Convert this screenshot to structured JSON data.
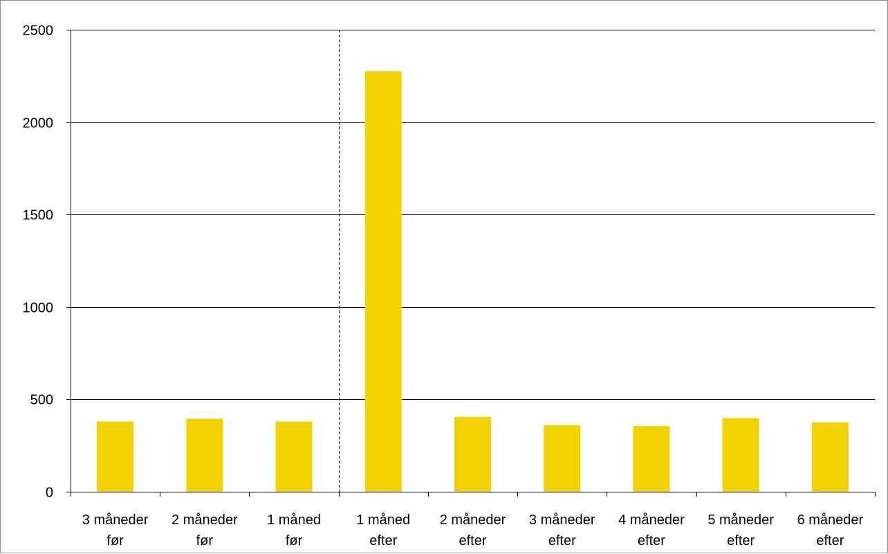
{
  "chart_data": {
    "type": "bar",
    "categories": [
      [
        "3 måneder",
        "før"
      ],
      [
        "2 måneder",
        "før"
      ],
      [
        "1 måned",
        "før"
      ],
      [
        "1 måned",
        "efter"
      ],
      [
        "2 måneder",
        "efter"
      ],
      [
        "3 måneder",
        "efter"
      ],
      [
        "4 måneder",
        "efter"
      ],
      [
        "5 måneder",
        "efter"
      ],
      [
        "6 måneder",
        "efter"
      ]
    ],
    "values": [
      380,
      395,
      380,
      2275,
      405,
      360,
      355,
      398,
      375
    ],
    "ylim": [
      0,
      2500
    ],
    "yticks": [
      "0",
      "500",
      "1000",
      "1500",
      "2000",
      "2500"
    ],
    "grid": true,
    "divider_after_category": 3,
    "bar_color": "#f2d200",
    "grid_color": "#000000",
    "divider_color": "#000000"
  }
}
